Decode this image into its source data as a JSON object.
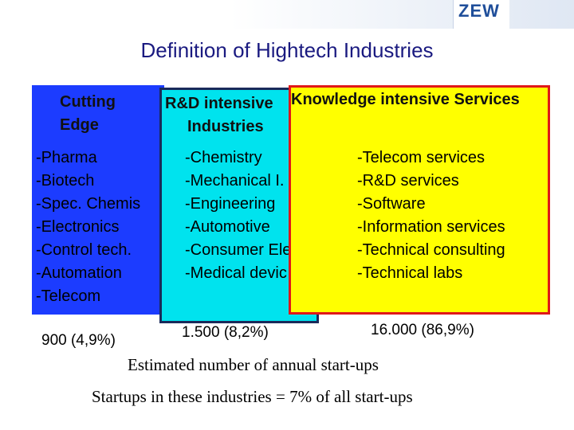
{
  "header": {
    "logo": "ZEW"
  },
  "title": "Definition of Hightech Industries",
  "columns": [
    {
      "heading": [
        "Cutting",
        "Edge"
      ],
      "items": [
        "-Pharma",
        "-Biotech",
        "-Spec. Chemis",
        "-Electronics",
        "-Control tech.",
        "-Automation",
        "-Telecom"
      ],
      "count": "900 (4,9%)"
    },
    {
      "heading": [
        "R&D intensive",
        "Industries"
      ],
      "items": [
        "-Chemistry",
        "-Mechanical I.",
        "-Engineering",
        "-Automotive",
        "-Consumer Ele",
        "-Medical devic"
      ],
      "count": "1.500 (8,2%)"
    },
    {
      "heading": [
        "Knowledge intensive Services"
      ],
      "items": [
        "-Telecom services",
        "-R&D services",
        "-Software",
        "-Information services",
        "-Technical consulting",
        "-Technical labs"
      ],
      "count": "16.000 (86,9%)"
    }
  ],
  "caption": "Estimated number of annual start-ups",
  "footnote": "Startups in these industries = 7% of all start-ups"
}
